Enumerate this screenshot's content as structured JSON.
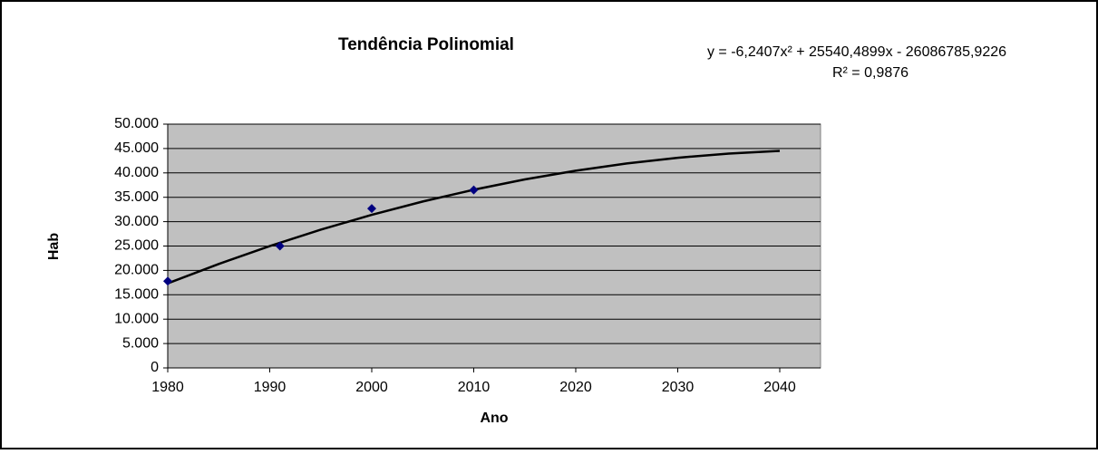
{
  "chart_data": {
    "type": "scatter",
    "title": "Tendência Polinomial",
    "equation": "y = -6,2407x² + 25540,4899x - 26086785,9226",
    "r_squared": "R² = 0,9876",
    "x_label": "Ano",
    "y_label": "Hab",
    "x": [
      1980,
      1991,
      2000,
      2010
    ],
    "values": [
      17800,
      25000,
      32700,
      36500
    ],
    "color": "#000080",
    "trendline": {
      "x": [
        1980,
        1985,
        1990,
        1995,
        2000,
        2005,
        2010,
        2015,
        2020,
        2025,
        2030,
        2035,
        2040
      ],
      "values": [
        17344,
        21324,
        24993,
        28349,
        31394,
        34126,
        36547,
        38655,
        40451,
        41936,
        43108,
        43968,
        44516
      ],
      "color": "#000000"
    },
    "xlim": [
      1980,
      2044
    ],
    "xticks": [
      1980,
      1990,
      2000,
      2010,
      2020,
      2030,
      2040
    ],
    "ylim": [
      0,
      50000
    ],
    "yticks": [
      0,
      {
        "value": 5000,
        "label": "5.000"
      },
      {
        "value": 10000,
        "label": "10.000"
      },
      {
        "value": 15000,
        "label": "15.000"
      },
      {
        "value": 20000,
        "label": "20.000"
      },
      {
        "value": 25000,
        "label": "25.000"
      },
      {
        "value": 30000,
        "label": "30.000"
      },
      {
        "value": 35000,
        "label": "35.000"
      },
      {
        "value": 40000,
        "label": "40.000"
      },
      {
        "value": 45000,
        "label": "45.000"
      },
      {
        "value": 50000,
        "label": "50.000"
      }
    ],
    "grid": true,
    "plot_background": "#c0c0c0"
  }
}
